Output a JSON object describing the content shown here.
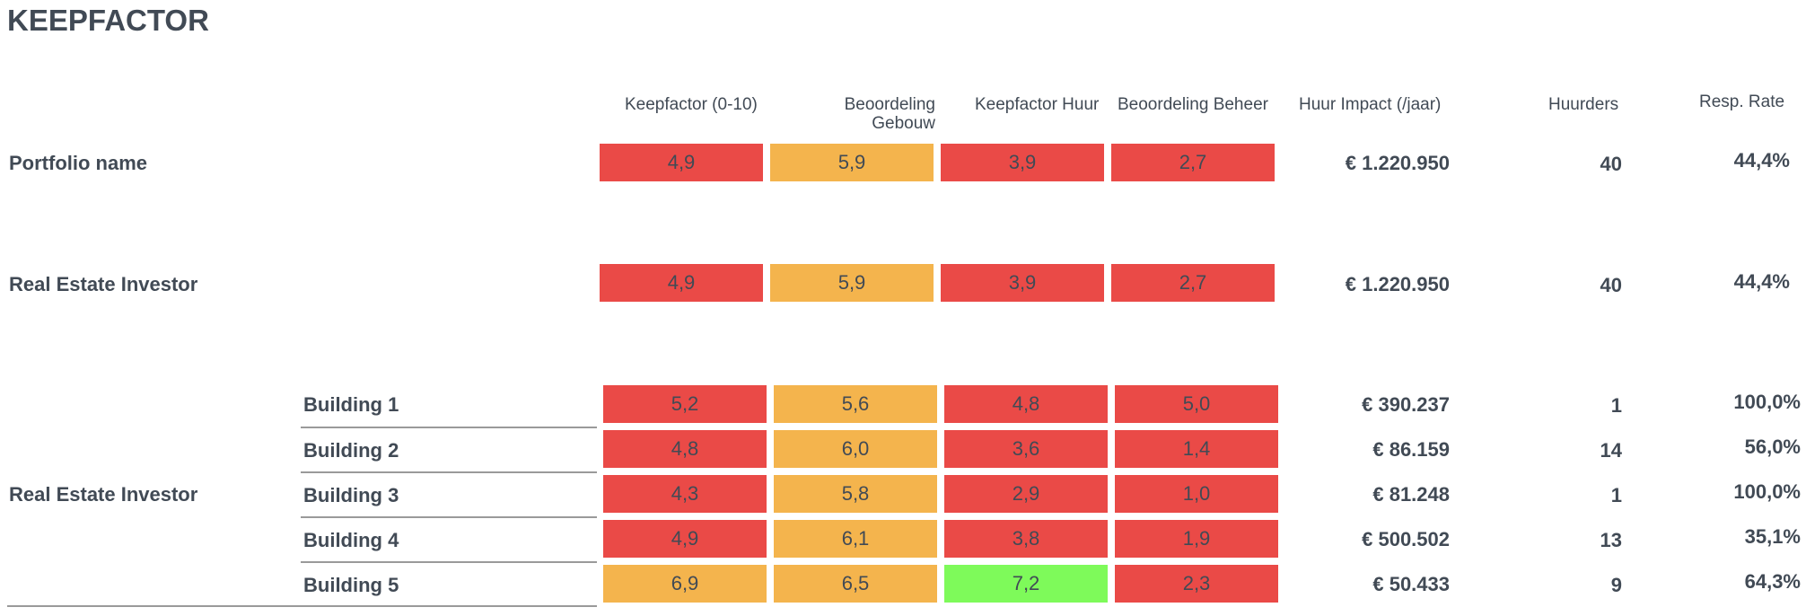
{
  "page_title": "KEEPFACTOR",
  "headers": {
    "keepfactor": "Keepfactor (0-10)",
    "beoordeling_gebouw_line1": "Beoordeling",
    "beoordeling_gebouw_line2": "Gebouw",
    "keepfactor_huur": "Keepfactor Huur",
    "beoordeling_beheer": "Beoordeling Beheer",
    "huur_impact": "Huur Impact (/jaar)",
    "huurders": "Huurders",
    "resp_rate": "Resp. Rate"
  },
  "colors": {
    "red": "#ea4a47",
    "orange": "#f4b44d",
    "green": "#7efa5a",
    "text": "#414a55"
  },
  "portfolio": {
    "label": "Portfolio name",
    "keepfactor": "4,9",
    "beoordeling_gebouw": "5,9",
    "keepfactor_huur": "3,9",
    "beoordeling_beheer": "2,7",
    "huur_impact": "€ 1.220.950",
    "huurders": "40",
    "resp_rate": "44,4%"
  },
  "investor": {
    "label": "Real Estate Investor",
    "keepfactor": "4,9",
    "beoordeling_gebouw": "5,9",
    "keepfactor_huur": "3,9",
    "beoordeling_beheer": "2,7",
    "huur_impact": "€ 1.220.950",
    "huurders": "40",
    "resp_rate": "44,4%"
  },
  "group": {
    "label": "Real Estate Investor",
    "buildings": [
      {
        "name": "Building 1",
        "keepfactor": "5,2",
        "beoordeling_gebouw": "5,6",
        "keepfactor_huur": "4,8",
        "beoordeling_beheer": "5,0",
        "huur_impact": "€ 390.237",
        "huurders": "1",
        "resp_rate": "100,0%"
      },
      {
        "name": "Building 2",
        "keepfactor": "4,8",
        "beoordeling_gebouw": "6,0",
        "keepfactor_huur": "3,6",
        "beoordeling_beheer": "1,4",
        "huur_impact": "€ 86.159",
        "huurders": "14",
        "resp_rate": "56,0%"
      },
      {
        "name": "Building 3",
        "keepfactor": "4,3",
        "beoordeling_gebouw": "5,8",
        "keepfactor_huur": "2,9",
        "beoordeling_beheer": "1,0",
        "huur_impact": "€ 81.248",
        "huurders": "1",
        "resp_rate": "100,0%"
      },
      {
        "name": "Building 4",
        "keepfactor": "4,9",
        "beoordeling_gebouw": "6,1",
        "keepfactor_huur": "3,8",
        "beoordeling_beheer": "1,9",
        "huur_impact": "€ 500.502",
        "huurders": "13",
        "resp_rate": "35,1%"
      },
      {
        "name": "Building 5",
        "keepfactor": "6,9",
        "beoordeling_gebouw": "6,5",
        "keepfactor_huur": "7,2",
        "beoordeling_beheer": "2,3",
        "huur_impact": "€ 50.433",
        "huurders": "9",
        "resp_rate": "64,3%"
      }
    ]
  }
}
